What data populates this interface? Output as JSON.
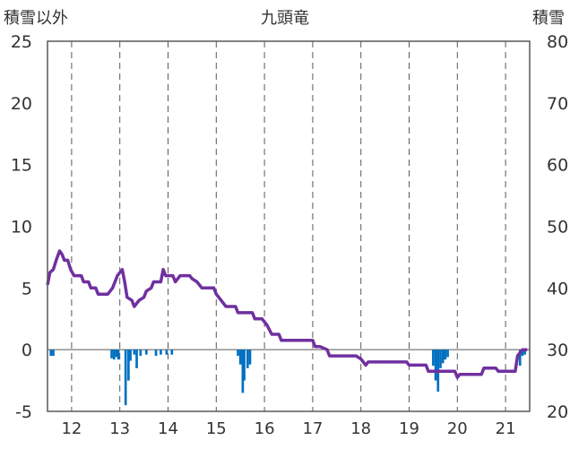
{
  "chart_data": {
    "type": "line",
    "title": "九頭竜",
    "left_axis_label": "積雪以外",
    "right_axis_label": "積雪",
    "left_ylim": [
      -5,
      25
    ],
    "left_yticks": [
      25,
      20,
      15,
      10,
      5,
      0,
      -5
    ],
    "right_ylim": [
      20,
      80
    ],
    "right_yticks": [
      80,
      70,
      60,
      50,
      40,
      30,
      20
    ],
    "xlim": [
      11.5,
      21.5
    ],
    "xticks": [
      "12",
      "13",
      "14",
      "15",
      "16",
      "17",
      "18",
      "19",
      "20",
      "21"
    ],
    "grid": "vertical dashed at each day",
    "colors": {
      "line": "#7030a0",
      "bars": "#0070c0",
      "frame": "#595959",
      "grid": "#595959"
    },
    "series": [
      {
        "type": "line",
        "axis": "right",
        "points": [
          [
            11.5,
            40.5
          ],
          [
            11.55,
            42.5
          ],
          [
            11.62,
            43
          ],
          [
            11.68,
            44.5
          ],
          [
            11.75,
            46
          ],
          [
            11.8,
            45.5
          ],
          [
            11.85,
            44.5
          ],
          [
            11.92,
            44.5
          ],
          [
            11.98,
            43
          ],
          [
            12.05,
            42
          ],
          [
            12.2,
            42
          ],
          [
            12.25,
            41
          ],
          [
            12.35,
            41
          ],
          [
            12.4,
            40
          ],
          [
            12.5,
            40
          ],
          [
            12.55,
            39
          ],
          [
            12.75,
            39
          ],
          [
            12.85,
            40
          ],
          [
            12.95,
            42
          ],
          [
            13.05,
            43
          ],
          [
            13.1,
            41
          ],
          [
            13.15,
            38.5
          ],
          [
            13.25,
            38
          ],
          [
            13.3,
            37
          ],
          [
            13.35,
            37.5
          ],
          [
            13.4,
            38
          ],
          [
            13.5,
            38.5
          ],
          [
            13.55,
            39.5
          ],
          [
            13.65,
            40
          ],
          [
            13.7,
            41
          ],
          [
            13.85,
            41
          ],
          [
            13.9,
            43
          ],
          [
            13.95,
            42
          ],
          [
            14.1,
            42
          ],
          [
            14.15,
            41
          ],
          [
            14.25,
            42
          ],
          [
            14.45,
            42
          ],
          [
            14.5,
            41.5
          ],
          [
            14.6,
            41
          ],
          [
            14.7,
            40
          ],
          [
            14.95,
            40
          ],
          [
            15,
            39
          ],
          [
            15.1,
            38
          ],
          [
            15.2,
            37
          ],
          [
            15.4,
            37
          ],
          [
            15.45,
            36
          ],
          [
            15.75,
            36
          ],
          [
            15.8,
            35
          ],
          [
            15.95,
            35
          ],
          [
            16.05,
            34
          ],
          [
            16.15,
            32.5
          ],
          [
            16.3,
            32.5
          ],
          [
            16.35,
            31.5
          ],
          [
            17,
            31.5
          ],
          [
            17.05,
            30.5
          ],
          [
            17.15,
            30.5
          ],
          [
            17.3,
            30
          ],
          [
            17.35,
            29
          ],
          [
            17.9,
            29
          ],
          [
            18,
            28.5
          ],
          [
            18.1,
            27.5
          ],
          [
            18.15,
            28
          ],
          [
            18.2,
            28
          ],
          [
            18.95,
            28
          ],
          [
            19,
            27.5
          ],
          [
            19.35,
            27.5
          ],
          [
            19.4,
            26.5
          ],
          [
            19.95,
            26.5
          ],
          [
            20,
            25.5
          ],
          [
            20.05,
            26
          ],
          [
            20.1,
            26
          ],
          [
            20.5,
            26
          ],
          [
            20.55,
            27
          ],
          [
            20.8,
            27
          ],
          [
            20.85,
            26.5
          ],
          [
            21.2,
            26.5
          ],
          [
            21.25,
            29
          ],
          [
            21.35,
            30
          ],
          [
            21.45,
            30
          ]
        ]
      },
      {
        "type": "bar",
        "axis": "left",
        "points": [
          [
            11.57,
            -0.5
          ],
          [
            11.62,
            -0.5
          ],
          [
            12.83,
            -0.7
          ],
          [
            12.88,
            -0.8
          ],
          [
            12.93,
            -0.6
          ],
          [
            12.97,
            -0.8
          ],
          [
            13.12,
            -4.5
          ],
          [
            13.18,
            -2.5
          ],
          [
            13.22,
            -0.9
          ],
          [
            13.3,
            -0.4
          ],
          [
            13.35,
            -1.5
          ],
          [
            13.43,
            -0.5
          ],
          [
            13.55,
            -0.4
          ],
          [
            13.75,
            -0.5
          ],
          [
            13.85,
            -0.4
          ],
          [
            13.97,
            -0.4
          ],
          [
            14.08,
            -0.4
          ],
          [
            15.45,
            -0.5
          ],
          [
            15.5,
            -1.2
          ],
          [
            15.55,
            -3.5
          ],
          [
            15.58,
            -2.5
          ],
          [
            15.65,
            -1.5
          ],
          [
            15.7,
            -1.2
          ],
          [
            19.5,
            -1.3
          ],
          [
            19.55,
            -2.5
          ],
          [
            19.6,
            -3.4
          ],
          [
            19.65,
            -1.5
          ],
          [
            19.7,
            -1.1
          ],
          [
            19.75,
            -0.8
          ],
          [
            19.8,
            -0.6
          ],
          [
            21.3,
            -1.3
          ],
          [
            21.35,
            -0.5
          ],
          [
            21.4,
            -0.4
          ]
        ]
      }
    ]
  }
}
